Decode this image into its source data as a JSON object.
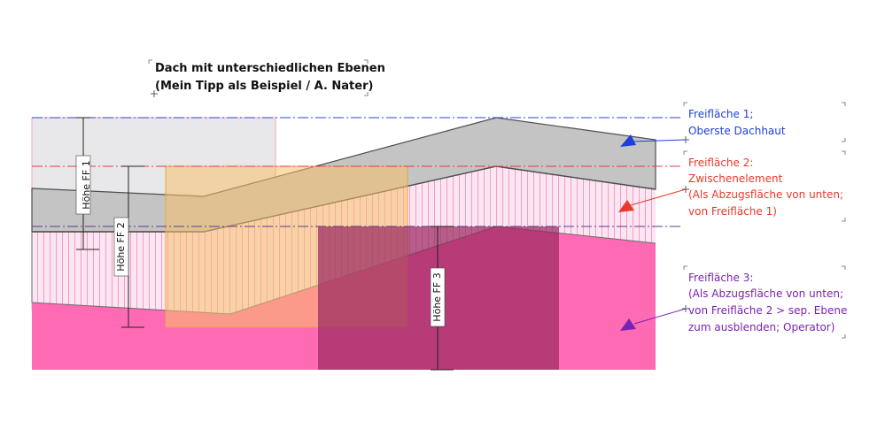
{
  "title": {
    "line1": "Dach mit unterschiedlichen Ebenen",
    "line2": "(Mein Tipp als Beispiel / A. Nater)"
  },
  "dimensions": {
    "ff1": "Höhe FF 1",
    "ff2": "Höhe FF 2",
    "ff3": "Höhe FF 3"
  },
  "notes": {
    "ff1": {
      "color": "#1f3fd6",
      "lines": [
        "Freifläche 1;",
        "Oberste Dachhaut"
      ]
    },
    "ff2": {
      "color": "#e8392a",
      "lines": [
        "Freifläche 2:",
        "Zwischenelement",
        "(Als Abzugsfläche von unten;",
        "von Freifläche 1)"
      ]
    },
    "ff3": {
      "color": "#7a22b4",
      "lines": [
        "Freifläche 3:",
        "(Als Abzugsfläche von unten;",
        "von Freifläche 2 > sep. Ebene",
        "zum ausblenden; Operator)"
      ]
    }
  },
  "colors": {
    "roof_gray": "#c8c8c8",
    "roof_edge": "#555555",
    "pink_strong": "#ff69b4",
    "pink_light": "#fbe3f1",
    "hatch": "#f2a6cf",
    "orange_box": "#f7c98a",
    "purple_box": "#b03a74",
    "light_box": "#e9e9ec",
    "line_blue": "#2b47c9",
    "line_red": "#e04040",
    "line_purple": "#5a3b8a"
  }
}
